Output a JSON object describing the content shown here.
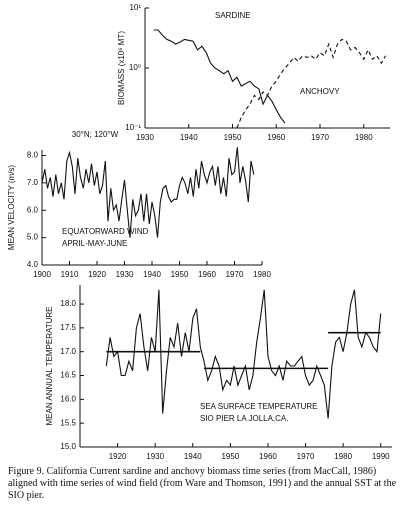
{
  "chart_data": [
    {
      "type": "line",
      "log_scale": true,
      "y_label": "BIOMASS (x10⁶ MT)",
      "xlim": [
        1930,
        1986
      ],
      "xticks": [
        1930,
        1940,
        1950,
        1960,
        1970,
        1980
      ],
      "ylim": [
        0.1,
        10
      ],
      "yticks": [
        {
          "value": 10,
          "label": "10¹"
        },
        {
          "value": 1,
          "label": "10⁰"
        },
        {
          "value": 0.1,
          "label": "10⁻¹"
        }
      ],
      "series": [
        {
          "name": "SARDINE",
          "color": "#111111",
          "style": "solid",
          "x": [
            1932,
            1933,
            1934,
            1935,
            1936,
            1937,
            1938,
            1939,
            1940,
            1941,
            1942,
            1943,
            1944,
            1945,
            1946,
            1947,
            1948,
            1949,
            1950,
            1951,
            1952,
            1953,
            1954,
            1955,
            1956,
            1957,
            1958,
            1959,
            1960,
            1961,
            1962
          ],
          "values": [
            4.3,
            4.3,
            3.5,
            3.0,
            2.8,
            2.5,
            2.7,
            3.0,
            2.9,
            2.8,
            2.0,
            2.3,
            1.8,
            1.2,
            1.0,
            0.9,
            0.8,
            0.9,
            0.6,
            0.7,
            0.5,
            0.55,
            0.6,
            0.5,
            0.45,
            0.25,
            0.35,
            0.28,
            0.2,
            0.15,
            0.12
          ]
        },
        {
          "name": "ANCHOVY",
          "color": "#111111",
          "style": "dashed",
          "x": [
            1951,
            1952,
            1953,
            1954,
            1955,
            1956,
            1957,
            1958,
            1959,
            1960,
            1961,
            1962,
            1963,
            1964,
            1965,
            1966,
            1967,
            1968,
            1969,
            1970,
            1971,
            1972,
            1973,
            1974,
            1975,
            1976,
            1977,
            1978,
            1979,
            1980,
            1981,
            1982,
            1983,
            1984,
            1985
          ],
          "values": [
            0.1,
            0.15,
            0.2,
            0.25,
            0.35,
            0.3,
            0.4,
            0.35,
            0.5,
            0.6,
            0.8,
            1.0,
            1.2,
            1.5,
            1.3,
            1.6,
            1.5,
            1.6,
            1.4,
            1.8,
            1.6,
            2.5,
            1.5,
            2.5,
            3.0,
            2.8,
            2.0,
            2.2,
            1.8,
            1.4,
            2.0,
            1.4,
            1.6,
            1.2,
            1.6
          ]
        }
      ]
    },
    {
      "type": "line",
      "title": "30°N; 120°W",
      "y_label": "MEAN VELOCITY (m/s)",
      "annotations": [
        "EQUATORWARD WIND",
        "APRIL-MAY-JUNE"
      ],
      "xlim": [
        1900,
        1980
      ],
      "xticks": [
        1900,
        1910,
        1920,
        1930,
        1940,
        1950,
        1960,
        1970,
        1980
      ],
      "ylim": [
        4,
        8.2
      ],
      "yticks": [
        {
          "value": 4,
          "label": "4.0"
        },
        {
          "value": 5,
          "label": "5.0"
        },
        {
          "value": 6,
          "label": "6.0"
        },
        {
          "value": 7,
          "label": "7.0"
        },
        {
          "value": 8,
          "label": "8.0"
        }
      ],
      "series": [
        {
          "color": "#111111",
          "style": "solid",
          "x": [
            1900,
            1901,
            1902,
            1903,
            1904,
            1905,
            1906,
            1907,
            1908,
            1909,
            1910,
            1911,
            1912,
            1913,
            1914,
            1915,
            1916,
            1917,
            1918,
            1919,
            1920,
            1921,
            1922,
            1923,
            1924,
            1925,
            1926,
            1927,
            1928,
            1929,
            1930,
            1931,
            1932,
            1933,
            1934,
            1935,
            1936,
            1937,
            1938,
            1939,
            1940,
            1941,
            1942,
            1943,
            1944,
            1945,
            1946,
            1947,
            1948,
            1949,
            1950,
            1951,
            1952,
            1953,
            1954,
            1955,
            1956,
            1957,
            1958,
            1959,
            1960,
            1961,
            1962,
            1963,
            1964,
            1965,
            1966,
            1967,
            1968,
            1969,
            1970,
            1971,
            1972,
            1973,
            1974,
            1975,
            1976,
            1977
          ],
          "values": [
            7.0,
            7.5,
            6.8,
            7.2,
            6.5,
            7.3,
            6.6,
            7.0,
            6.4,
            7.8,
            8.1,
            7.6,
            6.6,
            7.9,
            7.2,
            6.8,
            7.5,
            7.0,
            7.7,
            6.9,
            7.4,
            6.6,
            6.9,
            7.8,
            5.6,
            6.8,
            6.0,
            6.2,
            5.6,
            6.4,
            7.1,
            6.0,
            5.0,
            6.4,
            5.8,
            6.0,
            6.6,
            5.6,
            6.6,
            5.5,
            6.3,
            5.8,
            5.0,
            6.3,
            6.8,
            6.9,
            6.5,
            6.3,
            6.4,
            6.4,
            6.9,
            7.2,
            7.0,
            6.6,
            7.2,
            6.5,
            7.5,
            6.8,
            7.8,
            7.3,
            7.0,
            7.4,
            7.6,
            6.9,
            7.6,
            6.6,
            7.2,
            6.5,
            7.9,
            7.3,
            7.4,
            8.3,
            7.0,
            7.6,
            7.1,
            6.3,
            7.8,
            7.3
          ]
        }
      ]
    },
    {
      "type": "line",
      "y_label": "MEAN ANNUAL TEMPERATURE",
      "annotations": [
        "SEA SURFACE TEMPERATURE",
        "SIO PIER LA JOLLA,CA."
      ],
      "xlim": [
        1910,
        1993
      ],
      "xticks": [
        1920,
        1930,
        1940,
        1950,
        1960,
        1970,
        1980,
        1990
      ],
      "ylim": [
        15,
        18.4
      ],
      "yticks": [
        {
          "value": 15,
          "label": "15.0"
        },
        {
          "value": 15.5,
          "label": "15.5"
        },
        {
          "value": 16,
          "label": "16.0"
        },
        {
          "value": 16.5,
          "label": "16.5"
        },
        {
          "value": 17,
          "label": "17.0"
        },
        {
          "value": 17.5,
          "label": "17.5"
        },
        {
          "value": 18,
          "label": "18.0"
        }
      ],
      "means": [
        {
          "x": [
            1917,
            1942
          ],
          "value": 17.0
        },
        {
          "x": [
            1943,
            1976
          ],
          "value": 16.65
        },
        {
          "x": [
            1976,
            1990
          ],
          "value": 17.4
        }
      ],
      "series": [
        {
          "color": "#111111",
          "style": "solid",
          "x": [
            1917,
            1918,
            1919,
            1920,
            1921,
            1922,
            1923,
            1924,
            1925,
            1926,
            1927,
            1928,
            1929,
            1930,
            1931,
            1932,
            1933,
            1934,
            1935,
            1936,
            1937,
            1938,
            1939,
            1940,
            1941,
            1942,
            1943,
            1944,
            1945,
            1946,
            1947,
            1948,
            1949,
            1950,
            1951,
            1952,
            1953,
            1954,
            1955,
            1956,
            1957,
            1958,
            1959,
            1960,
            1961,
            1962,
            1963,
            1964,
            1965,
            1966,
            1967,
            1968,
            1969,
            1970,
            1971,
            1972,
            1973,
            1974,
            1975,
            1976,
            1977,
            1978,
            1979,
            1980,
            1981,
            1982,
            1983,
            1984,
            1985,
            1986,
            1987,
            1988,
            1989,
            1990
          ],
          "values": [
            16.7,
            17.3,
            16.9,
            17.0,
            16.5,
            16.5,
            16.8,
            16.6,
            17.5,
            17.8,
            17.1,
            16.6,
            17.3,
            17.0,
            18.3,
            15.7,
            16.6,
            17.3,
            17.1,
            17.6,
            16.9,
            17.4,
            17.0,
            17.7,
            17.9,
            17.1,
            16.8,
            16.4,
            16.6,
            16.9,
            16.7,
            16.2,
            16.4,
            16.3,
            16.7,
            16.3,
            16.5,
            16.7,
            16.2,
            16.5,
            17.2,
            17.7,
            18.3,
            16.9,
            16.6,
            16.5,
            16.7,
            16.4,
            16.8,
            16.7,
            16.7,
            16.8,
            16.9,
            16.5,
            16.3,
            16.4,
            16.7,
            16.5,
            16.3,
            15.6,
            16.7,
            17.2,
            17.3,
            17.0,
            17.4,
            18.0,
            18.3,
            17.3,
            17.1,
            17.4,
            17.3,
            17.1,
            17.0,
            17.8
          ]
        }
      ]
    }
  ],
  "caption": "Figure 9.  California Current sardine and anchovy biomass time series (from MacCall, 1986) aligned with time series of wind field (from Ware and Thomson, 1991) and the annual SST at the SIO pier."
}
